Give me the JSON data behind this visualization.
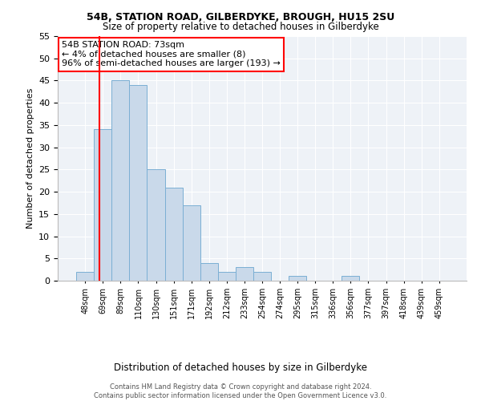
{
  "title1": "54B, STATION ROAD, GILBERDYKE, BROUGH, HU15 2SU",
  "title2": "Size of property relative to detached houses in Gilberdyke",
  "xlabel": "Distribution of detached houses by size in Gilberdyke",
  "ylabel": "Number of detached properties",
  "bar_labels": [
    "48sqm",
    "69sqm",
    "89sqm",
    "110sqm",
    "130sqm",
    "151sqm",
    "171sqm",
    "192sqm",
    "212sqm",
    "233sqm",
    "254sqm",
    "274sqm",
    "295sqm",
    "315sqm",
    "336sqm",
    "356sqm",
    "377sqm",
    "397sqm",
    "418sqm",
    "439sqm",
    "459sqm"
  ],
  "bar_values": [
    2,
    34,
    45,
    44,
    25,
    21,
    17,
    4,
    2,
    3,
    2,
    0,
    1,
    0,
    0,
    1,
    0,
    0,
    0,
    0,
    0
  ],
  "bar_color": "#c9d9ea",
  "bar_edge_color": "#7bafd4",
  "annotation_title": "54B STATION ROAD: 73sqm",
  "annotation_line1": "← 4% of detached houses are smaller (8)",
  "annotation_line2": "96% of semi-detached houses are larger (193) →",
  "annotation_box_color": "white",
  "annotation_box_edge_color": "red",
  "vline_x": 1,
  "ylim": [
    0,
    55
  ],
  "yticks": [
    0,
    5,
    10,
    15,
    20,
    25,
    30,
    35,
    40,
    45,
    50,
    55
  ],
  "footer1": "Contains HM Land Registry data © Crown copyright and database right 2024.",
  "footer2": "Contains public sector information licensed under the Open Government Licence v3.0.",
  "bg_color": "#eef2f7"
}
